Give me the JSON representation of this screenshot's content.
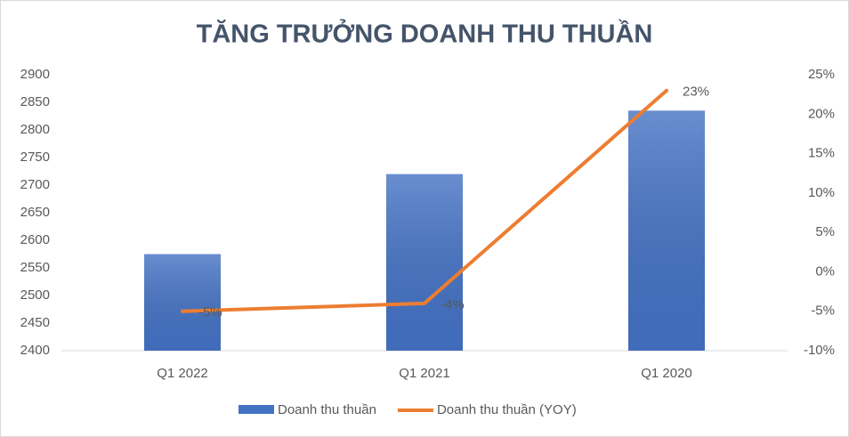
{
  "chart_data": {
    "type": "bar_line",
    "title": "TĂNG TRƯỞNG DOANH THU THUẦN",
    "categories": [
      "Q1 2022",
      "Q1 2021",
      "Q1 2020"
    ],
    "series": [
      {
        "name": "Doanh thu thuần",
        "type": "bar",
        "color": "#4472c4",
        "values": [
          2575,
          2720,
          2835
        ]
      },
      {
        "name": "Doanh thu thuần (YOY)",
        "type": "line",
        "axis": "y2",
        "color": "#ed7d31",
        "values": [
          -5,
          -4,
          23
        ],
        "value_labels": [
          "-5%",
          "-4%",
          "23%"
        ]
      }
    ],
    "ylim": [
      2400,
      2900
    ],
    "yticks": [
      2400,
      2450,
      2500,
      2550,
      2600,
      2650,
      2700,
      2750,
      2800,
      2850,
      2900
    ],
    "y2lim": [
      -10,
      25
    ],
    "y2ticks": [
      {
        "value": -10,
        "label": "-10%"
      },
      {
        "value": -5,
        "label": "-5%"
      },
      {
        "value": 0,
        "label": "0%"
      },
      {
        "value": 5,
        "label": "5%"
      },
      {
        "value": 10,
        "label": "10%"
      },
      {
        "value": 15,
        "label": "15%"
      },
      {
        "value": 20,
        "label": "20%"
      },
      {
        "value": 25,
        "label": "25%"
      }
    ],
    "legend": "bottom"
  }
}
